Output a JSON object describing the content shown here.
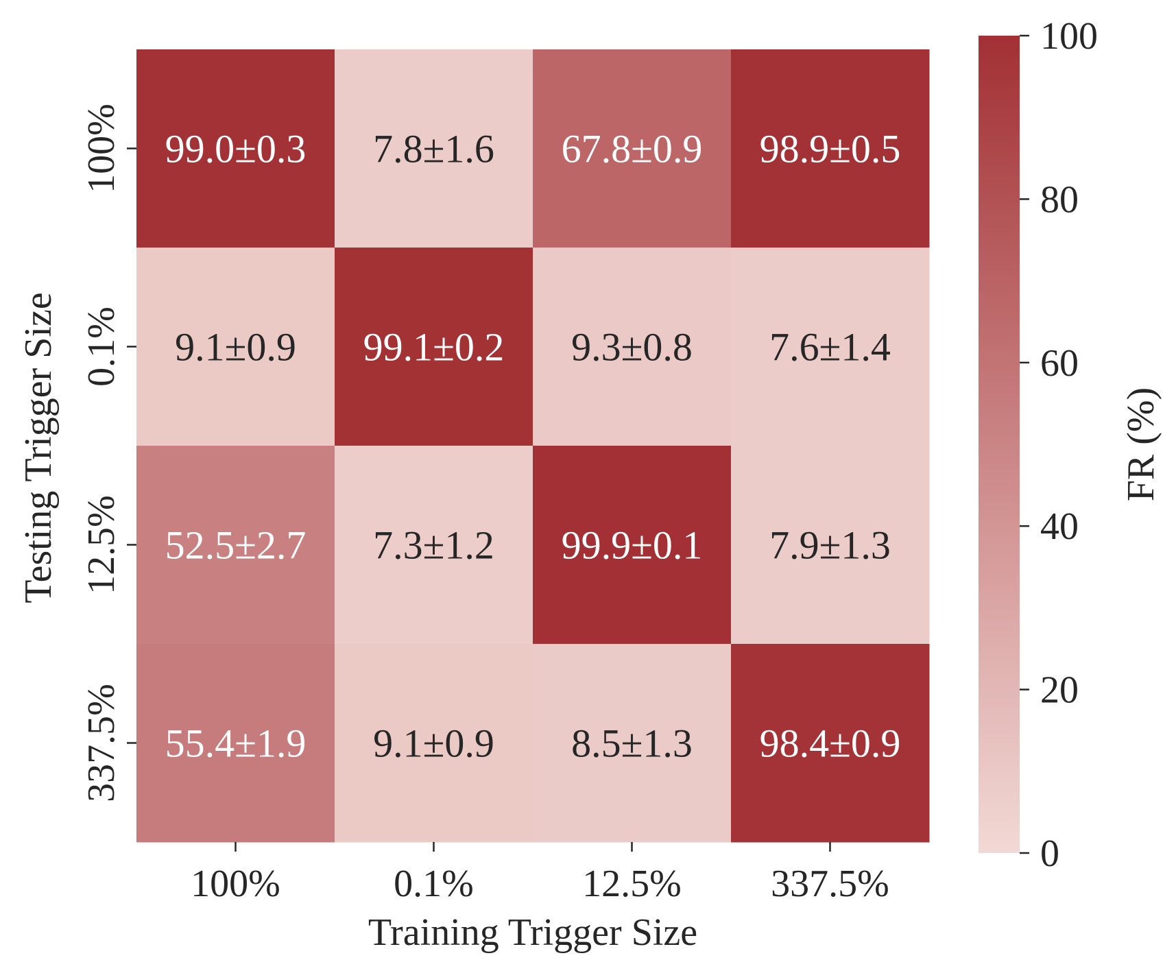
{
  "chart_data": {
    "type": "heatmap",
    "xlabel": "Training Trigger Size",
    "ylabel": "Testing Trigger Size",
    "x_categories": [
      "100%",
      "0.1%",
      "12.5%",
      "337.5%"
    ],
    "y_categories": [
      "100%",
      "0.1%",
      "12.5%",
      "337.5%"
    ],
    "values": [
      [
        99.0,
        7.8,
        67.8,
        98.9
      ],
      [
        9.1,
        99.1,
        9.3,
        7.6
      ],
      [
        52.5,
        7.3,
        99.9,
        7.9
      ],
      [
        55.4,
        9.1,
        8.5,
        98.4
      ]
    ],
    "cell_labels": [
      [
        "99.0±0.3",
        "7.8±1.6",
        "67.8±0.9",
        "98.9±0.5"
      ],
      [
        "9.1±0.9",
        "99.1±0.2",
        "9.3±0.8",
        "7.6±1.4"
      ],
      [
        "52.5±2.7",
        "7.3±1.2",
        "99.9±0.1",
        "7.9±1.3"
      ],
      [
        "55.4±1.9",
        "9.1±0.9",
        "8.5±1.3",
        "98.4±0.9"
      ]
    ],
    "colorbar": {
      "label": "FR (%)",
      "range": [
        0,
        100
      ],
      "ticks": [
        0,
        20,
        40,
        60,
        80,
        100
      ],
      "color_low": "#f2d9d5",
      "color_high": "#a23034"
    },
    "text_color_dark": "#262626",
    "text_color_light": "#ffffff"
  }
}
